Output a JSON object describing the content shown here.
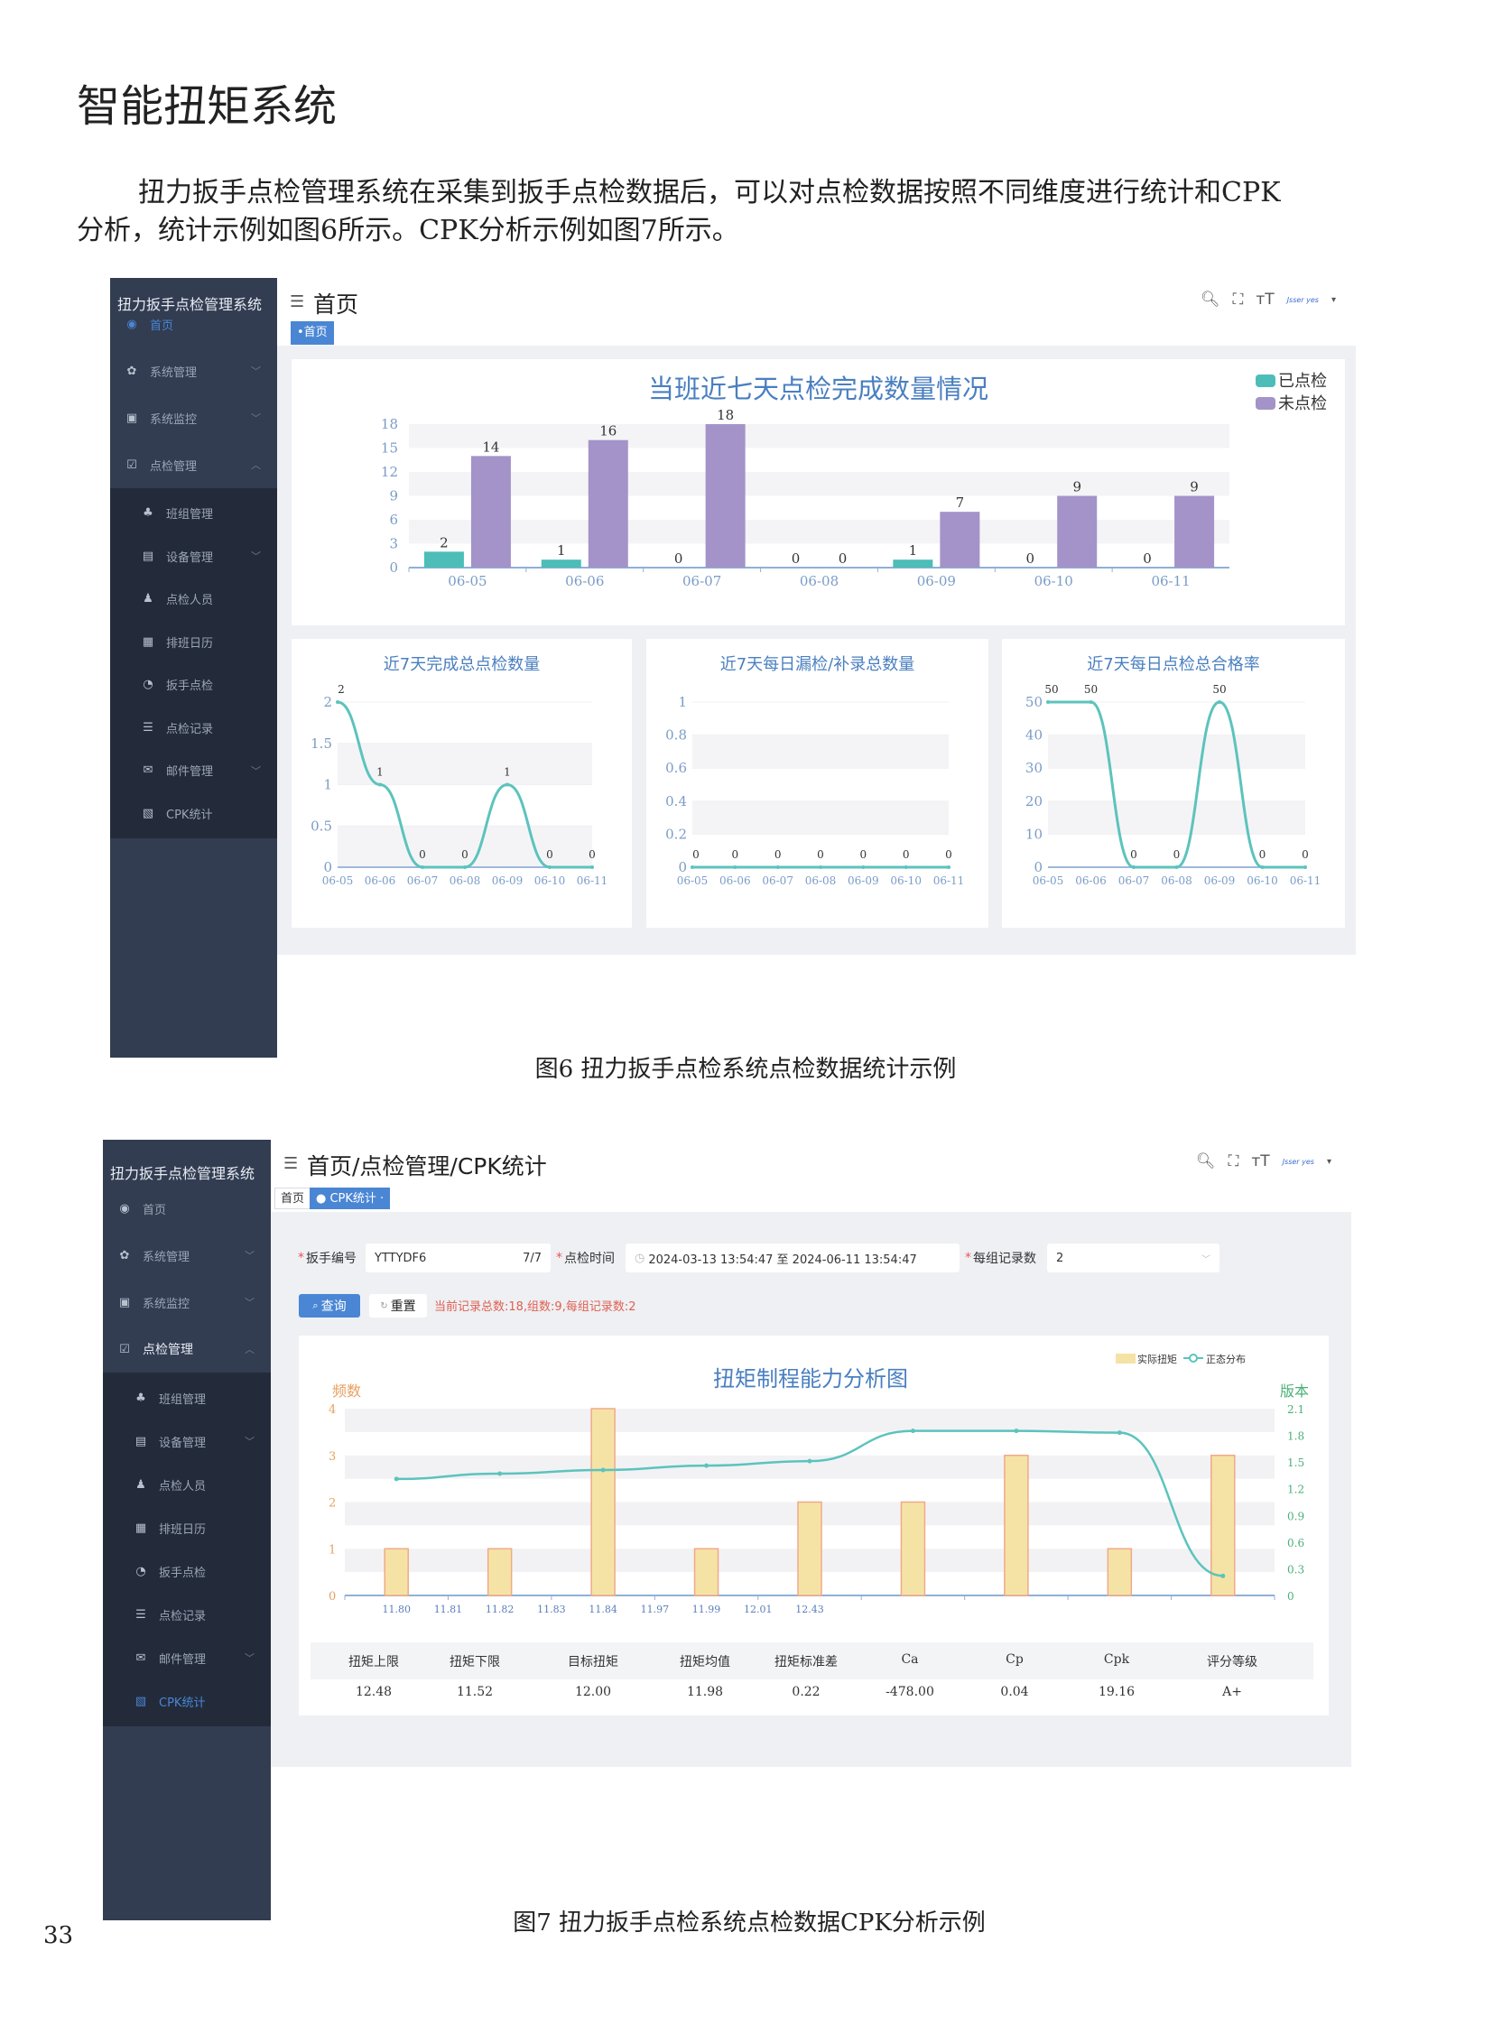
{
  "heading": "智能扭矩系统",
  "paragraph": {
    "line1": "扭力扳手点检管理系统在采集到扳手点检数据后，可以对点检数据按照不同维度进行统计和CPK",
    "line2": "分析，统计示例如图6所示。CPK分析示例如图7所示。"
  },
  "fig6": {
    "caption": "图6  扭力扳手点检系统点检数据统计示例",
    "sidebar": {
      "title": "扭力扳手点检管理系统",
      "items": [
        {
          "label": "首页",
          "icon": "dashboard-icon",
          "glyph": "◉",
          "active": true
        },
        {
          "label": "系统管理",
          "icon": "gear-icon",
          "glyph": "✿",
          "chevron": "﹀"
        },
        {
          "label": "系统监控",
          "icon": "monitor-icon",
          "glyph": "▣",
          "chevron": "﹀"
        },
        {
          "label": "点检管理",
          "icon": "checkbox-icon",
          "glyph": "☑",
          "chevron": "︿"
        }
      ],
      "sub": [
        {
          "label": "班组管理",
          "icon": "org-tree-icon",
          "glyph": "♣"
        },
        {
          "label": "设备管理",
          "icon": "device-icon",
          "glyph": "▤",
          "chevron": "﹀"
        },
        {
          "label": "点检人员",
          "icon": "user-icon",
          "glyph": "♟"
        },
        {
          "label": "排班日历",
          "icon": "calendar-icon",
          "glyph": "▦"
        },
        {
          "label": "扳手点检",
          "icon": "wrench-icon",
          "glyph": "◔"
        },
        {
          "label": "点检记录",
          "icon": "list-icon",
          "glyph": "☰"
        },
        {
          "label": "邮件管理",
          "icon": "mail-icon",
          "glyph": "✉",
          "chevron": "﹀"
        },
        {
          "label": "CPK统计",
          "icon": "chart-icon",
          "glyph": "▧"
        }
      ]
    },
    "header": {
      "title": "首页",
      "tab": "•首页",
      "user": "Jsser yes"
    },
    "charts": {
      "main_title": "当班近七天点检完成数量情况",
      "small1_title": "近7天完成总点检数量",
      "small2_title": "近7天每日漏检/补录总数量",
      "small3_title": "近7天每日点检总合格率"
    }
  },
  "fig7": {
    "caption": "图7  扭力扳手点检系统点检数据CPK分析示例",
    "sidebar": {
      "title": "扭力扳手点检管理系统",
      "items": [
        {
          "label": "首页",
          "icon": "dashboard-icon",
          "glyph": "◉"
        },
        {
          "label": "系统管理",
          "icon": "gear-icon",
          "glyph": "✿",
          "chevron": "﹀"
        },
        {
          "label": "系统监控",
          "icon": "monitor-icon",
          "glyph": "▣",
          "chevron": "﹀"
        },
        {
          "label": "点检管理",
          "icon": "checkbox-icon",
          "glyph": "☑",
          "chevron": "︿",
          "bright": true
        }
      ],
      "sub": [
        {
          "label": "班组管理",
          "icon": "org-tree-icon",
          "glyph": "♣"
        },
        {
          "label": "设备管理",
          "icon": "device-icon",
          "glyph": "▤",
          "chevron": "﹀"
        },
        {
          "label": "点检人员",
          "icon": "user-icon",
          "glyph": "♟"
        },
        {
          "label": "排班日历",
          "icon": "calendar-icon",
          "glyph": "▦"
        },
        {
          "label": "扳手点检",
          "icon": "wrench-icon",
          "glyph": "◔"
        },
        {
          "label": "点检记录",
          "icon": "list-icon",
          "glyph": "☰"
        },
        {
          "label": "邮件管理",
          "icon": "mail-icon",
          "glyph": "✉",
          "chevron": "﹀"
        },
        {
          "label": "CPK统计",
          "icon": "chart-icon",
          "glyph": "▧",
          "active": true
        }
      ]
    },
    "header": {
      "title": "首页/点检管理/CPK统计",
      "tab_home": "首页",
      "tab_active": "● CPK统计 ·",
      "user": "Jsser yes"
    },
    "form": {
      "wrench_label": "扳手编号",
      "wrench_value": "YTTYDF6",
      "wrench_count": "7/7",
      "time_label": "点检时间",
      "time_value": "2024-03-13 13:54:47 至 2024-06-11 13:54:47",
      "group_label": "每组记录数",
      "group_value": "2",
      "query_label": "查询",
      "reset_label": "重置",
      "status": "当前记录总数:18,组数:9,每组记录数:2"
    },
    "table": {
      "headers": [
        "扭矩上限",
        "扭矩下限",
        "目标扭矩",
        "扭矩均值",
        "扭矩标准差",
        "Ca",
        "Cp",
        "Cpk",
        "评分等级"
      ],
      "values": [
        "12.48",
        "11.52",
        "12.00",
        "11.98",
        "0.22",
        "-478.00",
        "0.04",
        "19.16",
        "A+"
      ]
    }
  },
  "page_number": "33",
  "colors": {
    "checked": "#4dbdb8",
    "unchecked": "#a393c8",
    "accent": "#4a86d4",
    "sidebar": "#323d52",
    "bar_yellow": "#f5e3a6",
    "bar_edge": "#f0a98a",
    "line_teal": "#5cc3bd",
    "status_red": "#e06050"
  },
  "chart_data": [
    {
      "type": "bar",
      "title": "当班近七天点检完成数量情况",
      "categories": [
        "06-05",
        "06-06",
        "06-07",
        "06-08",
        "06-09",
        "06-10",
        "06-11"
      ],
      "series": [
        {
          "name": "已点检",
          "values": [
            2,
            1,
            0,
            0,
            1,
            0,
            0
          ]
        },
        {
          "name": "未点检",
          "values": [
            14,
            16,
            18,
            0,
            7,
            9,
            9
          ]
        }
      ],
      "ylim": [
        0,
        18
      ],
      "yticks": [
        0,
        3,
        6,
        9,
        12,
        15,
        18
      ],
      "legend": "top-right"
    },
    {
      "type": "line",
      "title": "近7天完成总点检数量",
      "categories": [
        "06-05",
        "06-06",
        "06-07",
        "06-08",
        "06-09",
        "06-10",
        "06-11"
      ],
      "values": [
        2,
        1,
        0,
        0,
        1,
        0,
        0
      ],
      "ylim": [
        0,
        2
      ],
      "yticks": [
        "0",
        "0.5",
        "1",
        "1.5",
        "2"
      ]
    },
    {
      "type": "line",
      "title": "近7天每日漏检/补录总数量",
      "categories": [
        "06-05",
        "06-06",
        "06-07",
        "06-08",
        "06-09",
        "06-10",
        "06-11"
      ],
      "values": [
        0,
        0,
        0,
        0,
        0,
        0,
        0
      ],
      "ylim": [
        0,
        1
      ],
      "yticks": [
        "0",
        "0.2",
        "0.4",
        "0.6",
        "0.8",
        "1"
      ]
    },
    {
      "type": "line",
      "title": "近7天每日点检总合格率",
      "categories": [
        "06-05",
        "06-06",
        "06-07",
        "06-08",
        "06-09",
        "06-10",
        "06-11"
      ],
      "values": [
        50,
        50,
        0,
        0,
        50,
        0,
        0
      ],
      "ylim": [
        0,
        50
      ],
      "yticks": [
        "0",
        "10",
        "20",
        "30",
        "40",
        "50"
      ]
    },
    {
      "type": "bar",
      "title": "扭矩制程能力分析图",
      "xlabels": [
        "11.80",
        "11.81",
        "11.82",
        "11.83",
        "11.84",
        "11.97",
        "11.99",
        "12.01",
        "12.43"
      ],
      "series": [
        {
          "name": "实际扭矩",
          "type": "bar",
          "axis": "left",
          "values": [
            1,
            1,
            4,
            1,
            2,
            2,
            3,
            1,
            3
          ]
        },
        {
          "name": "正态分布",
          "type": "line",
          "axis": "right",
          "values": [
            1.31,
            1.37,
            1.41,
            1.46,
            1.51,
            1.85,
            1.85,
            1.83,
            0.22
          ]
        }
      ],
      "ylabel": "频数",
      "y2label": "版本",
      "ylim": [
        0,
        4
      ],
      "yticks": [
        "0",
        "1",
        "2",
        "3",
        "4"
      ],
      "y2lim": [
        0,
        2.1
      ],
      "y2ticks": [
        "0",
        "0.3",
        "0.6",
        "0.9",
        "1.2",
        "1.5",
        "1.8",
        "2.1"
      ],
      "legend": "top-right"
    }
  ]
}
